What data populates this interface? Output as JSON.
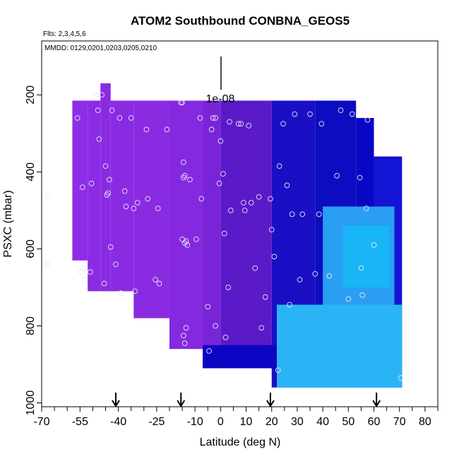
{
  "chart_data": {
    "type": "heatmap",
    "title": "ATOM2 Southbound CONBNA_GEOS5",
    "subtitle_left": "Flts: 2,3,4,5,6",
    "annotation_mmdd": "MMDD: 0129,0201,0203,0205,0210",
    "scale_bar_label": "1e-08",
    "xlabel": "Latitude (deg N)",
    "ylabel": "PSXC (mbar)",
    "xlim": [
      -70,
      85
    ],
    "ylim": [
      1010,
      60
    ],
    "y_reversed": true,
    "x_ticks": [
      -70,
      -55,
      -40,
      -25,
      -10,
      0,
      10,
      20,
      30,
      40,
      50,
      60,
      70,
      80
    ],
    "x_minor_ticks": [
      -65,
      -60,
      -50,
      -45,
      -35,
      -30,
      -20,
      -15,
      -5,
      5,
      15,
      25,
      35,
      45,
      55,
      65,
      75,
      85
    ],
    "y_ticks": [
      200,
      400,
      600,
      800,
      1000
    ],
    "arrows_lat": [
      -41,
      -15.5,
      19.5,
      61
    ],
    "colors": {
      "purple": "#8a2be2",
      "purple_light": "#9a30ef",
      "navy": "#0a0ac8",
      "blue": "#1818e8",
      "light_blue": "#2aa8f2",
      "cyan": "#00bfff"
    },
    "field_columns": [
      {
        "lat": [
          -58,
          -52
        ],
        "p": [
          215,
          630
        ],
        "color": "#8d2ee6"
      },
      {
        "lat": [
          -52,
          -47
        ],
        "p": [
          215,
          710
        ],
        "color": "#8b2ce4"
      },
      {
        "lat": [
          -47,
          -43
        ],
        "p": [
          170,
          710
        ],
        "color": "#8a2be2"
      },
      {
        "lat": [
          -43,
          -34
        ],
        "p": [
          215,
          710
        ],
        "color": "#8a2be2"
      },
      {
        "lat": [
          -34,
          -20
        ],
        "p": [
          215,
          780
        ],
        "color": "#8a2be2"
      },
      {
        "lat": [
          -20,
          -7
        ],
        "p": [
          215,
          860
        ],
        "color": "#8529e0"
      },
      {
        "lat": [
          -7,
          0
        ],
        "p": [
          215,
          910
        ],
        "color": "#7a24d8"
      },
      {
        "lat": [
          0,
          20
        ],
        "p": [
          215,
          910
        ],
        "color": "#5a1ac8"
      },
      {
        "lat": [
          20,
          37
        ],
        "p": [
          215,
          960
        ],
        "color": "#1b0fc6"
      },
      {
        "lat": [
          37,
          53
        ],
        "p": [
          215,
          960
        ],
        "color": "#0c0cc0"
      },
      {
        "lat": [
          53,
          60
        ],
        "p": [
          260,
          960
        ],
        "color": "#0808c4"
      },
      {
        "lat": [
          60,
          71
        ],
        "p": [
          360,
          960
        ],
        "color": "#1414d4"
      }
    ],
    "low_bands": [
      {
        "lat": [
          -7,
          22
        ],
        "p": [
          850,
          910
        ],
        "color": "#0c06c4"
      },
      {
        "lat": [
          22,
          71
        ],
        "p": [
          745,
          960
        ],
        "color": "#2ab4f5"
      },
      {
        "lat": [
          40,
          68
        ],
        "p": [
          490,
          745
        ],
        "color": "#2a9ef2"
      },
      {
        "lat": [
          48,
          66
        ],
        "p": [
          540,
          700
        ],
        "color": "#18b6f7"
      }
    ],
    "points": [
      [
        -67.5,
        460
      ],
      [
        -67.8,
        640
      ],
      [
        -56,
        260
      ],
      [
        -54,
        440
      ],
      [
        -54.5,
        660
      ],
      [
        -53.5,
        650
      ],
      [
        -53,
        680
      ],
      [
        -50.5,
        430
      ],
      [
        -51,
        660
      ],
      [
        -48.5,
        200
      ],
      [
        -48,
        240
      ],
      [
        -47.5,
        315
      ],
      [
        -46.5,
        200
      ],
      [
        -45.5,
        690
      ],
      [
        -45,
        385
      ],
      [
        -44.5,
        460
      ],
      [
        -44,
        455
      ],
      [
        -43.5,
        420
      ],
      [
        -43,
        595
      ],
      [
        -42.5,
        240
      ],
      [
        -41,
        640
      ],
      [
        -39.5,
        260
      ],
      [
        -39,
        715
      ],
      [
        -37.5,
        450
      ],
      [
        -37,
        490
      ],
      [
        -35,
        260
      ],
      [
        -34,
        495
      ],
      [
        -33.5,
        710
      ],
      [
        -32.5,
        480
      ],
      [
        -29,
        290
      ],
      [
        -28.5,
        470
      ],
      [
        -25.5,
        680
      ],
      [
        -24.5,
        495
      ],
      [
        -24,
        690
      ],
      [
        -21,
        290
      ],
      [
        -15,
        575
      ],
      [
        -15.5,
        220
      ],
      [
        -15,
        220
      ],
      [
        -14.5,
        375
      ],
      [
        -14,
        410
      ],
      [
        -14.5,
        415
      ],
      [
        -13.5,
        580
      ],
      [
        -14,
        585
      ],
      [
        -13,
        590
      ],
      [
        -13.5,
        805
      ],
      [
        -14.5,
        825
      ],
      [
        -14,
        845
      ],
      [
        -12,
        420
      ],
      [
        -9.5,
        575
      ],
      [
        -8,
        260
      ],
      [
        -7.5,
        470
      ],
      [
        -5,
        750
      ],
      [
        -4.5,
        865
      ],
      [
        -3.5,
        290
      ],
      [
        -3,
        260
      ],
      [
        -2,
        260
      ],
      [
        -2,
        800
      ],
      [
        -0.5,
        430
      ],
      [
        0,
        320
      ],
      [
        1,
        405
      ],
      [
        1.5,
        560
      ],
      [
        2,
        830
      ],
      [
        3,
        700
      ],
      [
        3.5,
        270
      ],
      [
        4,
        500
      ],
      [
        7,
        275
      ],
      [
        8,
        275
      ],
      [
        9,
        480
      ],
      [
        9.5,
        500
      ],
      [
        11,
        280
      ],
      [
        12,
        480
      ],
      [
        13.5,
        650
      ],
      [
        15,
        465
      ],
      [
        16,
        805
      ],
      [
        17.5,
        725
      ],
      [
        19.5,
        470
      ],
      [
        20,
        550
      ],
      [
        21,
        620
      ],
      [
        22.5,
        915
      ],
      [
        23,
        385
      ],
      [
        24.5,
        275
      ],
      [
        26,
        435
      ],
      [
        27,
        745
      ],
      [
        28,
        510
      ],
      [
        29,
        250
      ],
      [
        31,
        680
      ],
      [
        32,
        510
      ],
      [
        35,
        250
      ],
      [
        37,
        665
      ],
      [
        38.5,
        510
      ],
      [
        39.5,
        275
      ],
      [
        42.5,
        670
      ],
      [
        45.5,
        410
      ],
      [
        47,
        240
      ],
      [
        50,
        730
      ],
      [
        51.5,
        250
      ],
      [
        54.5,
        415
      ],
      [
        55,
        650
      ],
      [
        55.5,
        720
      ],
      [
        57,
        495
      ],
      [
        57.5,
        265
      ],
      [
        60,
        590
      ],
      [
        70.5,
        935
      ]
    ]
  }
}
